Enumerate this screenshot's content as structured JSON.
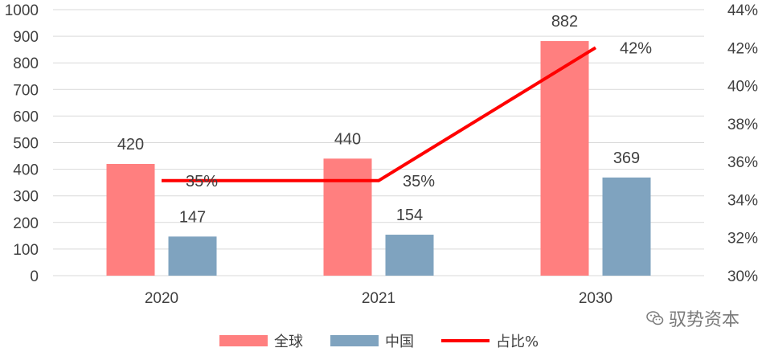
{
  "chart_data": {
    "type": "bar",
    "categories": [
      "2020",
      "2021",
      "2030"
    ],
    "series": [
      {
        "name": "全球",
        "values": [
          420,
          440,
          882
        ],
        "color": "#ff7f7f",
        "axis": "left"
      },
      {
        "name": "中国",
        "values": [
          147,
          154,
          369
        ],
        "color": "#7fa3bf",
        "axis": "left"
      }
    ],
    "line_series": {
      "name": "占比%",
      "values": [
        35,
        35,
        42
      ],
      "labels": [
        "35%",
        "35%",
        "42%"
      ],
      "color": "#ff0000",
      "axis": "right"
    },
    "ylim": [
      0,
      1000
    ],
    "yticks": [
      "0",
      "100",
      "200",
      "300",
      "400",
      "500",
      "600",
      "700",
      "800",
      "900",
      "1000"
    ],
    "y2lim": [
      30,
      44
    ],
    "y2ticks": [
      "30%",
      "32%",
      "34%",
      "36%",
      "38%",
      "40%",
      "42%",
      "44%"
    ],
    "grid": true,
    "legend_position": "bottom"
  },
  "watermark": {
    "text": "驭势资本",
    "icon": "wechat-icon"
  }
}
